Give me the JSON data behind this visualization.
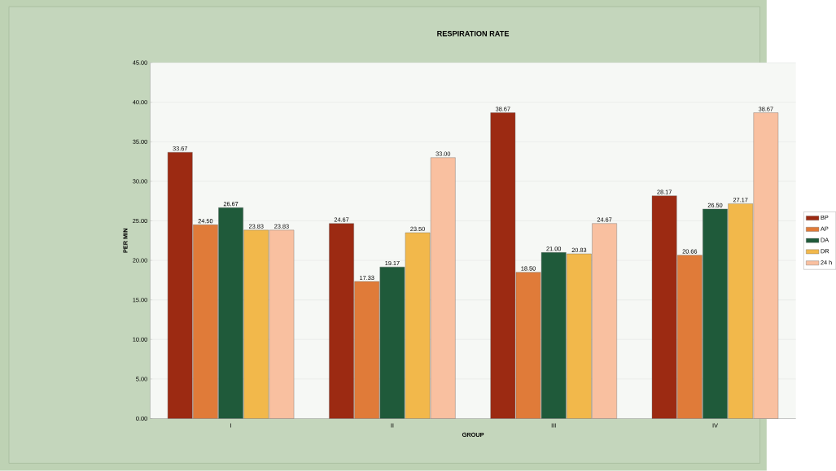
{
  "chart_data": {
    "type": "bar",
    "title": "RESPIRATION RATE",
    "xlabel": "GROUP",
    "ylabel": "PER MIN",
    "categories": [
      "I",
      "II",
      "III",
      "IV"
    ],
    "series": [
      {
        "name": "BP",
        "color": "#9c2a12",
        "values": [
          33.67,
          24.67,
          38.67,
          28.17
        ],
        "value_labels": [
          "33.67",
          "24.67",
          "38.67",
          "28.17"
        ]
      },
      {
        "name": "AP",
        "color": "#e07b39",
        "values": [
          24.5,
          17.33,
          18.5,
          20.66
        ],
        "value_labels": [
          "24.50",
          "17.33",
          "18.50",
          "20.66"
        ]
      },
      {
        "name": "DA",
        "color": "#1f5a3a",
        "values": [
          26.67,
          19.17,
          21.0,
          26.5
        ],
        "value_labels": [
          "26.67",
          "19.17",
          "21.00",
          "26.50"
        ]
      },
      {
        "name": "DR",
        "color": "#f2b84b",
        "values": [
          23.83,
          23.5,
          20.83,
          27.17
        ],
        "value_labels": [
          "23.83",
          "23.50",
          "20.83",
          "27.17"
        ]
      },
      {
        "name": "24 h",
        "color": "#f9c0a0",
        "values": [
          23.83,
          33.0,
          24.67,
          38.67
        ],
        "value_labels": [
          "23.83",
          "33.00",
          "24.67",
          "38.67"
        ]
      }
    ],
    "ylim": [
      0,
      45
    ],
    "yticks": [
      {
        "value": 0,
        "label": "0.00"
      },
      {
        "value": 5,
        "label": "5.00"
      },
      {
        "value": 10,
        "label": "10.00"
      },
      {
        "value": 15,
        "label": "15.00"
      },
      {
        "value": 20,
        "label": "20.00"
      },
      {
        "value": 25,
        "label": "25.00"
      },
      {
        "value": 30,
        "label": "30.00"
      },
      {
        "value": 35,
        "label": "35.00"
      },
      {
        "value": 40,
        "label": "40.00"
      },
      {
        "value": 45,
        "label": "45.00"
      }
    ],
    "grid": "y",
    "legend": "right"
  }
}
